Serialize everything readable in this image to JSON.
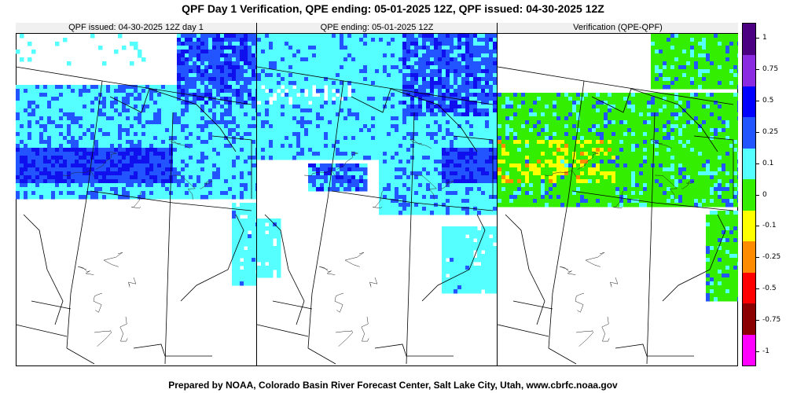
{
  "title": "QPF Day 1 Verification, QPE ending: 05-01-2025 12Z, QPF issued: 04-30-2025 12Z",
  "footer": "Prepared by NOAA, Colorado Basin River Forecast Center, Salt Lake City, Utah, www.cbrfc.noaa.gov",
  "panels": [
    {
      "title": "QPF issued: 04-30-2025 12Z day 1",
      "kind": "qpf"
    },
    {
      "title": "QPE ending: 05-01-2025 12Z",
      "kind": "qpe"
    },
    {
      "title": "Verification (QPE-QPF)",
      "kind": "verif"
    }
  ],
  "legend": {
    "labels": [
      "1",
      "0.75",
      "0.5",
      "0.25",
      "0.1",
      "0",
      "-0.1",
      "-0.25",
      "-0.5",
      "-0.75",
      "-1"
    ],
    "colors": [
      "#ff00ff",
      "#8b0000",
      "#ff0000",
      "#ff8c00",
      "#ffff00",
      "#33ee00",
      "#55ffff",
      "#2255ff",
      "#0000ff",
      "#8a2be2",
      "#4b0082"
    ]
  },
  "colors": {
    "precip_light": "#55ffff",
    "precip_medium": "#2255ff",
    "precip_heavy": "#1010ee",
    "verif_green": "#33ee00",
    "verif_yellow": "#ffff00",
    "verif_orange": "#ff8c00",
    "verif_blue": "#2255ff",
    "verif_cyan": "#55ffff"
  }
}
